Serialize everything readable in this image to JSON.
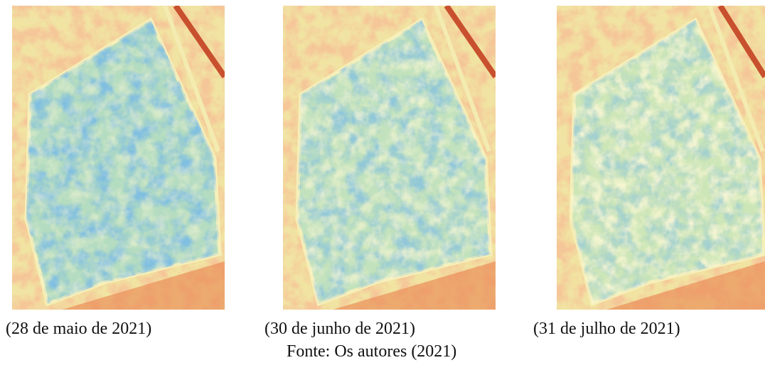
{
  "captions": [
    "(28 de maio de 2021)",
    "(30 de junho de 2021)",
    "(31 de julho de 2021)"
  ],
  "source": "Fonte: Os autores (2021)"
}
